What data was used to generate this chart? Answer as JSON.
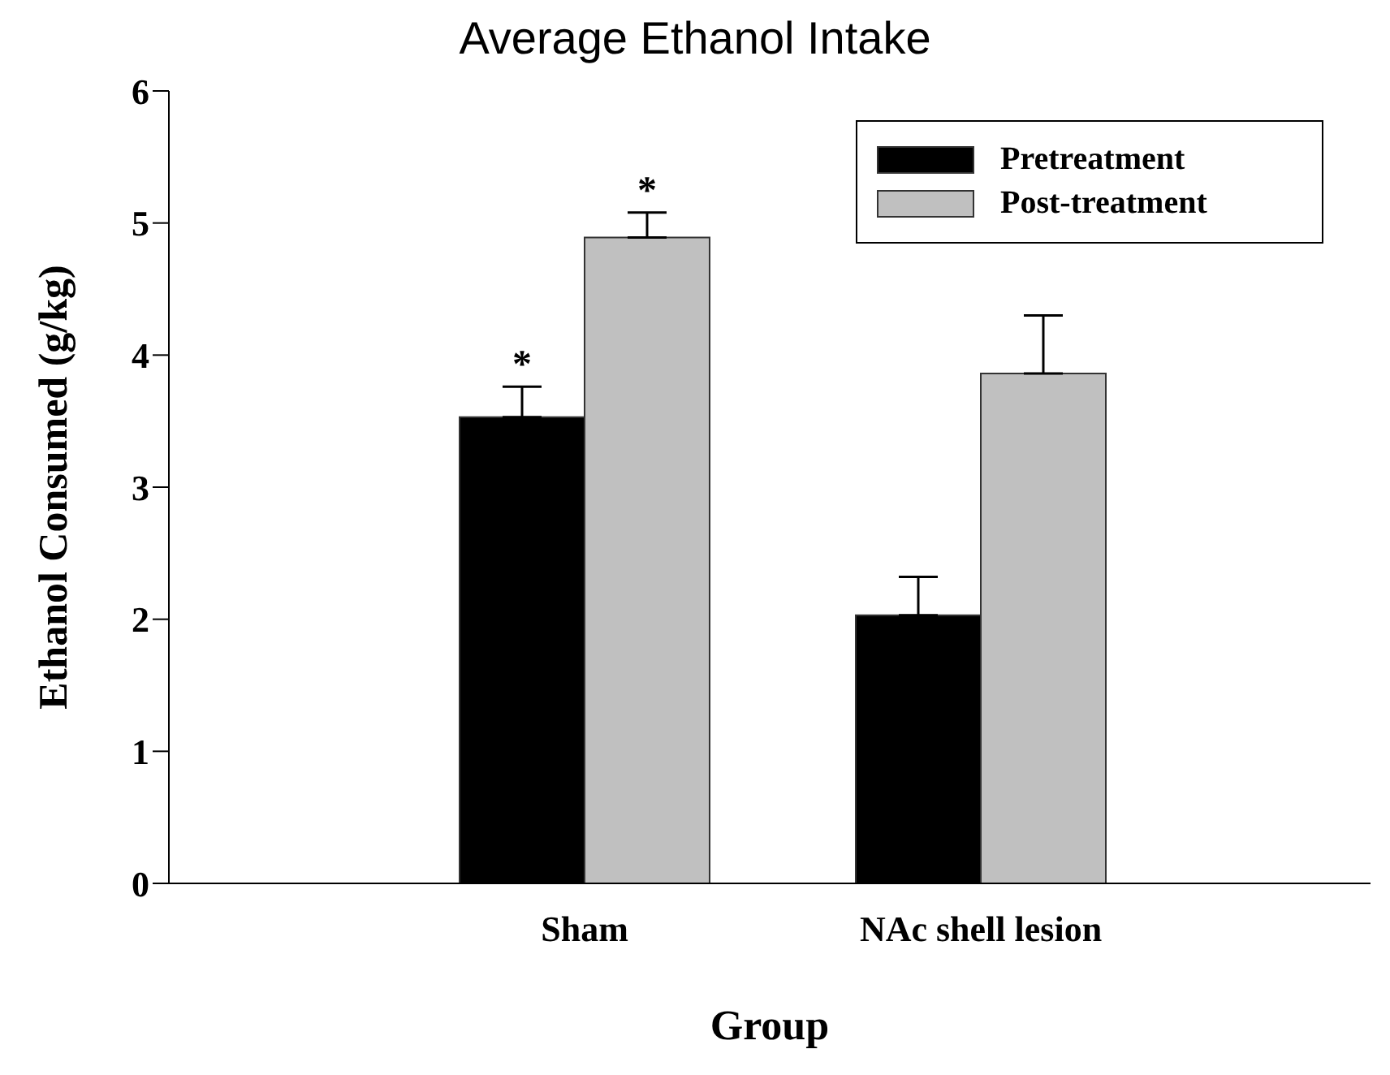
{
  "chart_data": {
    "type": "bar",
    "title": "Average Ethanol Intake",
    "xlabel": "Group",
    "ylabel": "Ethanol Consumed (g/kg)",
    "categories": [
      "Sham",
      "NAc shell lesion"
    ],
    "series": [
      {
        "name": "Pretreatment",
        "color": "#000000",
        "values": [
          3.53,
          2.03
        ],
        "errors": [
          [
            3.53,
            3.76
          ],
          [
            2.03,
            2.32
          ]
        ]
      },
      {
        "name": "Post-treatment",
        "color": "#c0c0c0",
        "values": [
          4.89,
          3.86
        ],
        "errors": [
          [
            4.89,
            5.08
          ],
          [
            3.86,
            4.3
          ]
        ]
      }
    ],
    "ylim": [
      0,
      6
    ],
    "yticks": [
      0,
      1,
      2,
      3,
      4,
      5,
      6
    ],
    "grid": false,
    "legend": "top right",
    "annotations": [
      {
        "text": "*",
        "x": "Sham",
        "y": 3.76
      },
      {
        "text": "*",
        "x": "Sham",
        "y": 4.89
      }
    ]
  }
}
